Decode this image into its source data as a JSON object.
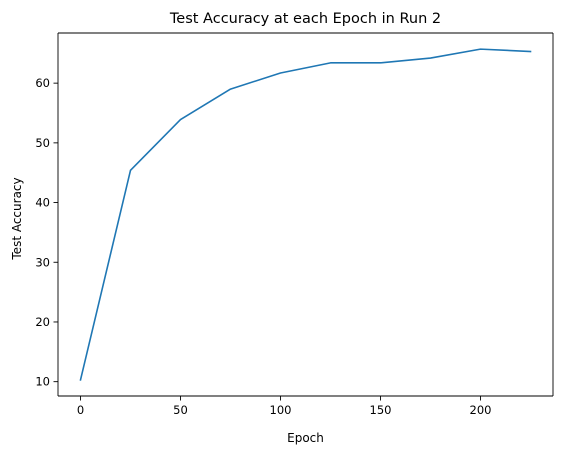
{
  "chart_data": {
    "type": "line",
    "title": "Test Accuracy at each Epoch in Run 2",
    "xlabel": "Epoch",
    "ylabel": "Test Accuracy",
    "xlim": [
      -11.25,
      236.25
    ],
    "ylim": [
      7.6,
      68.4
    ],
    "xticks": [
      0,
      50,
      100,
      150,
      200
    ],
    "yticks": [
      10,
      20,
      30,
      40,
      50,
      60
    ],
    "grid": false,
    "series": [
      {
        "color": "#1f77b4",
        "x": [
          0,
          25,
          50,
          75,
          100,
          125,
          150,
          175,
          200,
          225
        ],
        "y": [
          10.3,
          45.4,
          53.9,
          59.0,
          61.7,
          63.4,
          63.4,
          64.2,
          65.7,
          65.3
        ]
      }
    ]
  }
}
